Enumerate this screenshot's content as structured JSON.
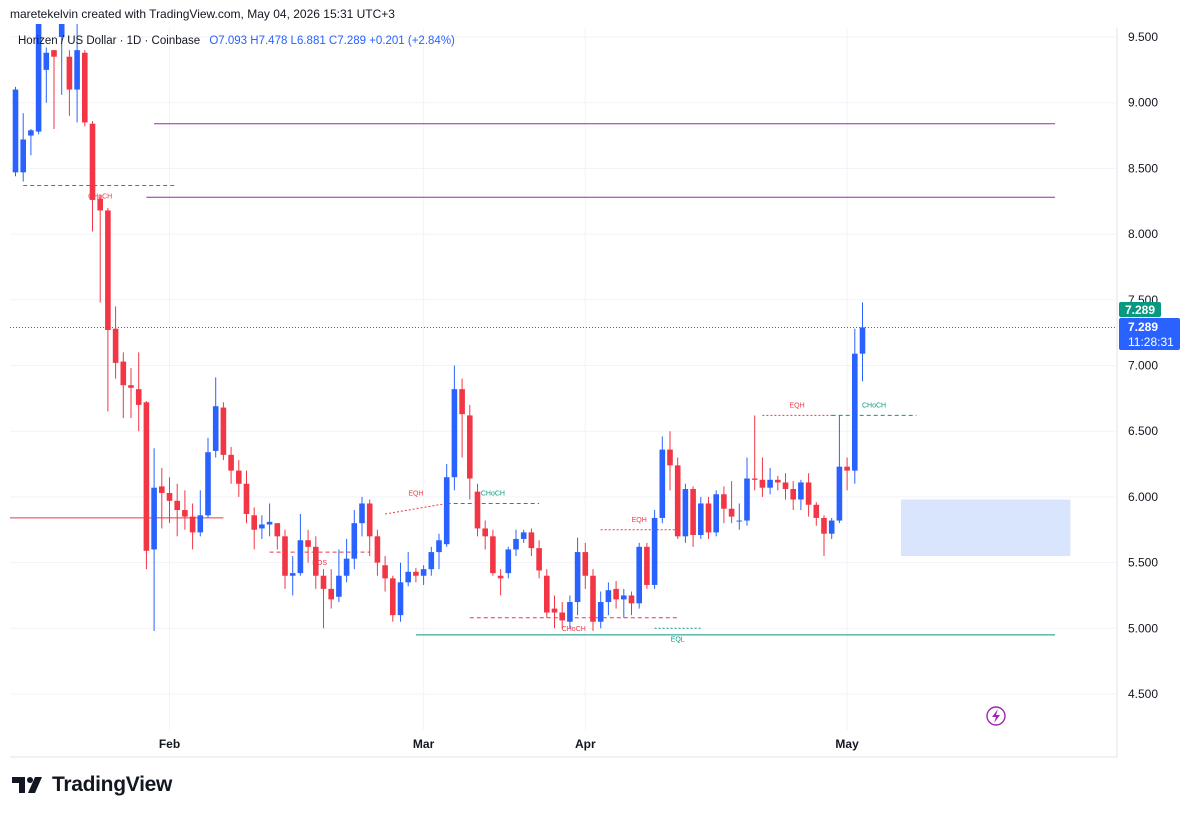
{
  "credit": "maretekelvin created with TradingView.com, May 04, 2026 15:31 UTC+3",
  "legend": {
    "symbol": "Horizen / US Dollar · 1D · Coinbase",
    "ohlc": "O7.093  H7.478  L6.881  C7.289  +0.201 (+2.84%)"
  },
  "brand": {
    "logo": "tradingview-logo",
    "name": "TradingView"
  },
  "colors": {
    "up": "#2962ff",
    "down": "#f23645",
    "structure_up": "#089981",
    "structure_down": "#f23645",
    "level": "#9c27b0",
    "fvg": "#d1e1fd"
  },
  "chart_data": {
    "type": "candlestick",
    "timeframe": "1D",
    "x_tick_labels": [
      "Feb",
      "Mar",
      "Apr",
      "May"
    ],
    "y_tick_labels": [
      "4.500",
      "5.000",
      "5.500",
      "6.000",
      "6.500",
      "7.000",
      "7.500",
      "8.000",
      "8.500",
      "9.000",
      "9.500"
    ],
    "ylim": [
      4.2,
      9.75
    ],
    "last_price": "7.289",
    "last_price_tag": "7.289",
    "countdown": "11:28:31",
    "candles": [
      [
        8.47,
        9.1,
        8.44,
        9.12
      ],
      [
        8.47,
        8.72,
        8.4,
        8.92
      ],
      [
        8.75,
        8.79,
        8.6,
        8.8
      ],
      [
        8.78,
        9.65,
        8.76,
        9.68
      ],
      [
        9.25,
        9.38,
        9.0,
        9.42
      ],
      [
        9.4,
        9.35,
        8.8,
        9.4
      ],
      [
        9.5,
        9.6,
        9.06,
        9.72
      ],
      [
        9.35,
        9.1,
        8.9,
        9.4
      ],
      [
        9.1,
        9.4,
        8.85,
        9.6
      ],
      [
        9.38,
        8.85,
        8.82,
        9.4
      ],
      [
        8.84,
        8.26,
        8.02,
        8.86
      ],
      [
        8.27,
        8.18,
        7.48,
        8.3
      ],
      [
        8.18,
        7.27,
        6.65,
        8.2
      ],
      [
        7.28,
        7.02,
        6.9,
        7.45
      ],
      [
        7.03,
        6.85,
        6.6,
        7.1
      ],
      [
        6.85,
        6.83,
        6.6,
        6.98
      ],
      [
        6.82,
        6.7,
        6.5,
        7.1
      ],
      [
        6.72,
        5.59,
        5.45,
        6.73
      ],
      [
        5.6,
        6.07,
        4.98,
        6.37
      ],
      [
        6.08,
        6.03,
        5.76,
        6.22
      ],
      [
        6.03,
        5.97,
        5.8,
        6.15
      ],
      [
        5.97,
        5.9,
        5.7,
        6.1
      ],
      [
        5.9,
        5.85,
        5.75,
        6.05
      ],
      [
        5.85,
        5.73,
        5.6,
        5.95
      ],
      [
        5.73,
        5.86,
        5.7,
        6.05
      ],
      [
        5.86,
        6.34,
        5.84,
        6.45
      ],
      [
        6.35,
        6.69,
        6.3,
        6.91
      ],
      [
        6.68,
        6.32,
        6.28,
        6.72
      ],
      [
        6.32,
        6.2,
        6.1,
        6.38
      ],
      [
        6.2,
        6.1,
        6.0,
        6.28
      ],
      [
        6.1,
        5.87,
        5.8,
        6.2
      ],
      [
        5.86,
        5.75,
        5.6,
        5.92
      ],
      [
        5.76,
        5.79,
        5.68,
        5.86
      ],
      [
        5.79,
        5.81,
        5.7,
        5.95
      ],
      [
        5.8,
        5.7,
        5.6,
        5.8
      ],
      [
        5.7,
        5.4,
        5.3,
        5.75
      ],
      [
        5.4,
        5.42,
        5.25,
        5.55
      ],
      [
        5.42,
        5.67,
        5.4,
        5.87
      ],
      [
        5.67,
        5.62,
        5.5,
        5.75
      ],
      [
        5.62,
        5.4,
        5.3,
        5.7
      ],
      [
        5.4,
        5.3,
        5.0,
        5.45
      ],
      [
        5.3,
        5.22,
        5.15,
        5.45
      ],
      [
        5.24,
        5.4,
        5.2,
        5.6
      ],
      [
        5.4,
        5.53,
        5.35,
        5.68
      ],
      [
        5.53,
        5.8,
        5.45,
        5.9
      ],
      [
        5.8,
        5.95,
        5.7,
        6.0
      ],
      [
        5.95,
        5.7,
        5.55,
        5.98
      ],
      [
        5.7,
        5.5,
        5.4,
        5.75
      ],
      [
        5.48,
        5.38,
        5.28,
        5.55
      ],
      [
        5.38,
        5.1,
        5.05,
        5.4
      ],
      [
        5.1,
        5.35,
        5.05,
        5.5
      ],
      [
        5.35,
        5.43,
        5.32,
        5.58
      ],
      [
        5.43,
        5.4,
        5.35,
        5.46
      ],
      [
        5.4,
        5.45,
        5.33,
        5.48
      ],
      [
        5.45,
        5.58,
        5.4,
        5.62
      ],
      [
        5.58,
        5.67,
        5.45,
        5.72
      ],
      [
        5.64,
        6.15,
        5.62,
        6.25
      ],
      [
        6.15,
        6.82,
        6.05,
        7.0
      ],
      [
        6.82,
        6.63,
        6.3,
        6.9
      ],
      [
        6.62,
        6.14,
        5.98,
        6.7
      ],
      [
        6.04,
        5.76,
        5.7,
        6.1
      ],
      [
        5.76,
        5.7,
        5.6,
        5.82
      ],
      [
        5.7,
        5.42,
        5.4,
        5.75
      ],
      [
        5.4,
        5.38,
        5.25,
        5.45
      ],
      [
        5.42,
        5.6,
        5.38,
        5.62
      ],
      [
        5.6,
        5.68,
        5.55,
        5.75
      ],
      [
        5.68,
        5.73,
        5.65,
        5.75
      ],
      [
        5.73,
        5.61,
        5.55,
        5.76
      ],
      [
        5.61,
        5.44,
        5.38,
        5.67
      ],
      [
        5.4,
        5.12,
        5.08,
        5.45
      ],
      [
        5.15,
        5.12,
        5.0,
        5.25
      ],
      [
        5.12,
        5.06,
        5.0,
        5.2
      ],
      [
        5.05,
        5.2,
        5.0,
        5.25
      ],
      [
        5.2,
        5.58,
        5.1,
        5.69
      ],
      [
        5.58,
        5.4,
        5.3,
        5.65
      ],
      [
        5.4,
        5.05,
        4.98,
        5.45
      ],
      [
        5.05,
        5.2,
        5.0,
        5.28
      ],
      [
        5.2,
        5.29,
        5.1,
        5.35
      ],
      [
        5.3,
        5.22,
        5.15,
        5.36
      ],
      [
        5.22,
        5.25,
        5.08,
        5.3
      ],
      [
        5.25,
        5.19,
        5.1,
        5.28
      ],
      [
        5.19,
        5.62,
        5.15,
        5.65
      ],
      [
        5.62,
        5.33,
        5.3,
        5.65
      ],
      [
        5.33,
        5.84,
        5.3,
        5.9
      ],
      [
        5.84,
        6.36,
        5.8,
        6.46
      ],
      [
        6.36,
        6.24,
        6.05,
        6.5
      ],
      [
        6.24,
        5.7,
        5.68,
        6.3
      ],
      [
        5.7,
        6.06,
        5.65,
        6.1
      ],
      [
        6.06,
        5.71,
        5.62,
        6.08
      ],
      [
        5.71,
        5.95,
        5.68,
        6.0
      ],
      [
        5.95,
        5.73,
        5.68,
        6.0
      ],
      [
        5.73,
        6.02,
        5.7,
        6.05
      ],
      [
        6.02,
        5.91,
        5.8,
        6.08
      ],
      [
        5.91,
        5.85,
        5.8,
        6.12
      ],
      [
        5.82,
        5.82,
        5.75,
        5.95
      ],
      [
        5.82,
        6.14,
        5.78,
        6.3
      ],
      [
        6.14,
        6.13,
        6.05,
        6.62
      ],
      [
        6.13,
        6.07,
        6.0,
        6.3
      ],
      [
        6.07,
        6.13,
        6.02,
        6.22
      ],
      [
        6.13,
        6.11,
        6.05,
        6.16
      ],
      [
        6.11,
        6.06,
        5.98,
        6.18
      ],
      [
        6.06,
        5.98,
        5.9,
        6.12
      ],
      [
        5.98,
        6.11,
        5.9,
        6.13
      ],
      [
        6.11,
        5.94,
        5.85,
        6.18
      ],
      [
        5.94,
        5.84,
        5.78,
        5.96
      ],
      [
        5.84,
        5.72,
        5.55,
        5.86
      ],
      [
        5.72,
        5.82,
        5.68,
        5.84
      ],
      [
        5.82,
        6.23,
        5.8,
        6.62
      ],
      [
        6.23,
        6.2,
        6.05,
        6.3
      ],
      [
        6.2,
        7.09,
        6.1,
        7.28
      ],
      [
        7.09,
        7.29,
        6.88,
        7.48
      ]
    ],
    "x_tick_candle_index": [
      20,
      53,
      74,
      108
    ],
    "structure": [
      {
        "label": "CHoCH",
        "kind": "down",
        "from": 1,
        "to": 21,
        "price": 8.37,
        "dashed": true
      },
      {
        "label": "",
        "kind": "level",
        "from": 18,
        "to": 135,
        "price": 8.84,
        "dashed": false
      },
      {
        "label": "",
        "kind": "level",
        "from": 17,
        "to": 135,
        "price": 8.28,
        "dashed": false
      },
      {
        "label": "",
        "kind": "down",
        "from": 0,
        "to": 27,
        "price": 5.84,
        "dashed": false
      },
      {
        "label": "BOS",
        "kind": "down",
        "from": 33,
        "to": 46,
        "price": 5.58,
        "dashed": true
      },
      {
        "label": "EQH",
        "kind": "down",
        "from": 48,
        "to": 56,
        "price": 5.87,
        "dashed": true,
        "end_price": 5.95
      },
      {
        "label": "CHoCH",
        "kind": "up",
        "from": 56,
        "to": 68,
        "price": 5.95,
        "dashed": true
      },
      {
        "label": "EQH",
        "kind": "down",
        "from": 76,
        "to": 86,
        "price": 5.75,
        "dashed": true
      },
      {
        "label": "CHoCH",
        "kind": "down",
        "from": 59,
        "to": 86,
        "price": 5.08,
        "dashed": true
      },
      {
        "label": "",
        "kind": "up",
        "from": 52,
        "to": 135,
        "price": 4.95,
        "dashed": false
      },
      {
        "label": "EQL",
        "kind": "up",
        "from": 83,
        "to": 89,
        "price": 5.0,
        "dashed": true
      },
      {
        "label": "EQH",
        "kind": "down",
        "from": 97,
        "to": 106,
        "price": 6.62,
        "dashed": true
      },
      {
        "label": "CHoCH",
        "kind": "up",
        "from": 106,
        "to": 117,
        "price": 6.62,
        "dashed": true
      }
    ],
    "zone": {
      "from": 115,
      "to": 137,
      "low": 5.55,
      "high": 5.98
    }
  }
}
